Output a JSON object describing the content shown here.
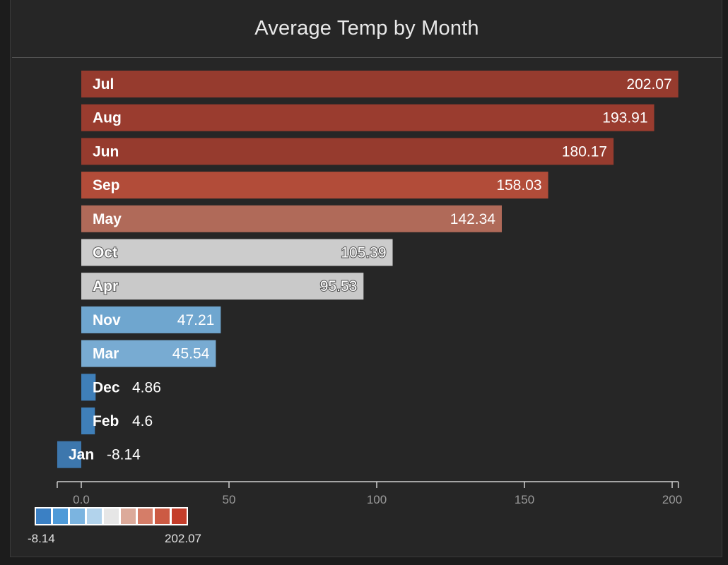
{
  "chart_data": {
    "type": "bar",
    "orientation": "horizontal",
    "title": "Average Temp by Month",
    "xlabel": "",
    "ylabel": "",
    "xlim": [
      -8.14,
      202.07
    ],
    "x_ticks": [
      {
        "value": 0,
        "label": "0.0"
      },
      {
        "value": 50,
        "label": "50"
      },
      {
        "value": 100,
        "label": "100"
      },
      {
        "value": 150,
        "label": "150"
      },
      {
        "value": 200,
        "label": "200"
      }
    ],
    "grid": false,
    "categories": [
      "Jul",
      "Aug",
      "Jun",
      "Sep",
      "May",
      "Oct",
      "Apr",
      "Nov",
      "Mar",
      "Dec",
      "Feb",
      "Jan"
    ],
    "values": [
      202.07,
      193.91,
      180.17,
      158.03,
      142.34,
      105.39,
      95.53,
      47.21,
      45.54,
      4.86,
      4.6,
      -8.14
    ],
    "value_labels": [
      "202.07",
      "193.91",
      "180.17",
      "158.03",
      "142.34",
      "105.39",
      "95.53",
      "47.21",
      "45.54",
      "4.86",
      "4.6",
      "-8.14"
    ],
    "color_scale": {
      "min_label": "-8.14",
      "max_label": "202.07",
      "placement": "bottom-left",
      "colors": [
        "#3b80c4",
        "#4e9ad8",
        "#7bb4e0",
        "#b2d3ec",
        "#e6e6e6",
        "#dcaa9a",
        "#d57d68",
        "#cc5a43",
        "#c43d2a"
      ]
    },
    "bar_colors": [
      "#963b2e",
      "#9a3c2f",
      "#963b2e",
      "#b24c39",
      "#b06a59",
      "#cccccc",
      "#c9c9c9",
      "#6fa6cf",
      "#78abd2",
      "#3f7fb9",
      "#3f7fb9",
      "#3d77ad"
    ]
  }
}
